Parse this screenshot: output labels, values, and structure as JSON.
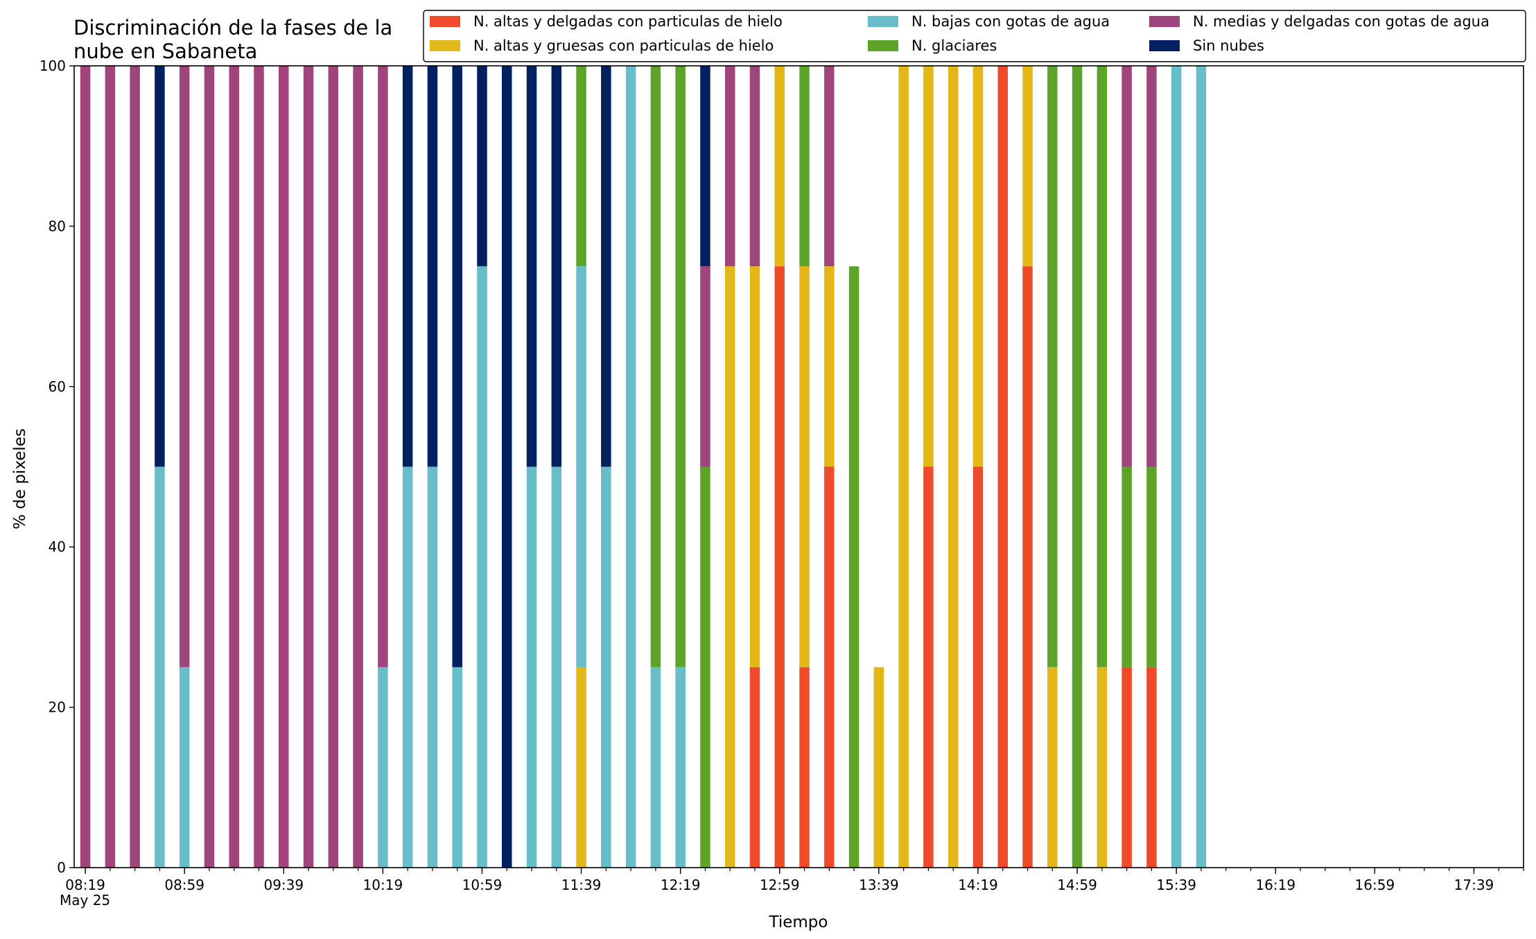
{
  "chart_data": {
    "type": "bar",
    "stacked": true,
    "title": "Discriminación de la fases de la\nnube en Sabaneta",
    "xlabel": "Tiempo",
    "ylabel": "% de pixeles",
    "ylim": [
      0,
      100
    ],
    "yticks": [
      0,
      20,
      40,
      60,
      80,
      100
    ],
    "x_axis": {
      "start": "08:19",
      "end": "17:59",
      "major_ticks": [
        "08:19",
        "08:59",
        "09:39",
        "10:19",
        "10:59",
        "11:39",
        "12:19",
        "12:59",
        "13:39",
        "14:19",
        "14:59",
        "15:39",
        "16:19",
        "16:59",
        "17:39"
      ],
      "minor_tick_step_minutes": 10,
      "date_label": "May 25"
    },
    "grid": false,
    "legend": {
      "placement": "top-right",
      "columns": 3
    },
    "categories": [
      "08:19",
      "08:29",
      "08:39",
      "08:49",
      "08:59",
      "09:09",
      "09:19",
      "09:29",
      "09:39",
      "09:49",
      "09:59",
      "10:09",
      "10:19",
      "10:29",
      "10:39",
      "10:49",
      "10:59",
      "11:09",
      "11:19",
      "11:29",
      "11:39",
      "11:49",
      "11:59",
      "12:09",
      "12:19",
      "12:29",
      "12:39",
      "12:49",
      "12:59",
      "13:09",
      "13:19",
      "13:29",
      "13:39",
      "13:49",
      "13:59",
      "14:09",
      "14:19",
      "14:29",
      "14:39",
      "14:49",
      "14:59",
      "15:09",
      "15:19",
      "15:29",
      "15:39",
      "15:49"
    ],
    "series": [
      {
        "name": "N. altas y delgadas con particulas de hielo",
        "color": "#ee4b2b",
        "values": [
          0,
          0,
          0,
          0,
          0,
          0,
          0,
          0,
          0,
          0,
          0,
          0,
          0,
          0,
          0,
          0,
          0,
          0,
          0,
          0,
          0,
          0,
          0,
          0,
          0,
          0,
          0,
          25,
          75,
          25,
          50,
          0,
          0,
          0,
          50,
          0,
          50,
          100,
          75,
          0,
          0,
          0,
          25,
          25,
          0,
          0
        ]
      },
      {
        "name": "N. altas y gruesas con particulas de hielo",
        "color": "#e3b717",
        "values": [
          0,
          0,
          0,
          0,
          0,
          0,
          0,
          0,
          0,
          0,
          0,
          0,
          0,
          0,
          0,
          0,
          0,
          0,
          0,
          0,
          25,
          0,
          0,
          0,
          0,
          0,
          75,
          50,
          25,
          50,
          25,
          0,
          25,
          100,
          50,
          100,
          50,
          0,
          25,
          25,
          0,
          25,
          0,
          0,
          0,
          0
        ]
      },
      {
        "name": "N. bajas con gotas de agua",
        "color": "#67bdc9",
        "values": [
          0,
          0,
          0,
          50,
          25,
          0,
          0,
          0,
          0,
          0,
          0,
          0,
          25,
          50,
          50,
          25,
          75,
          0,
          50,
          50,
          50,
          50,
          100,
          25,
          25,
          0,
          0,
          0,
          0,
          0,
          0,
          0,
          0,
          0,
          0,
          0,
          0,
          0,
          0,
          0,
          0,
          0,
          0,
          0,
          100,
          100
        ]
      },
      {
        "name": "N. glaciares",
        "color": "#5da32a",
        "values": [
          0,
          0,
          0,
          0,
          0,
          0,
          0,
          0,
          0,
          0,
          0,
          0,
          0,
          0,
          0,
          0,
          0,
          0,
          0,
          0,
          25,
          0,
          0,
          75,
          75,
          50,
          0,
          0,
          0,
          25,
          0,
          75,
          0,
          0,
          0,
          0,
          0,
          0,
          0,
          75,
          100,
          75,
          25,
          25,
          0,
          0
        ]
      },
      {
        "name": "N. medias y delgadas con gotas de agua",
        "color": "#a0457b",
        "values": [
          100,
          100,
          100,
          0,
          75,
          100,
          100,
          100,
          100,
          100,
          100,
          100,
          75,
          0,
          0,
          0,
          0,
          0,
          0,
          0,
          0,
          0,
          0,
          0,
          0,
          25,
          25,
          25,
          0,
          0,
          25,
          0,
          0,
          0,
          0,
          0,
          0,
          0,
          0,
          0,
          0,
          0,
          50,
          50,
          0,
          0
        ]
      },
      {
        "name": "Sin nubes",
        "color": "#032060",
        "values": [
          0,
          0,
          0,
          50,
          0,
          0,
          0,
          0,
          0,
          0,
          0,
          0,
          0,
          50,
          50,
          75,
          25,
          100,
          50,
          50,
          0,
          50,
          0,
          0,
          0,
          25,
          0,
          0,
          0,
          0,
          0,
          0,
          0,
          0,
          0,
          0,
          0,
          0,
          0,
          0,
          0,
          0,
          0,
          0,
          0,
          0
        ]
      }
    ],
    "stack_order": [
      0,
      1,
      2,
      3,
      4,
      5
    ]
  }
}
